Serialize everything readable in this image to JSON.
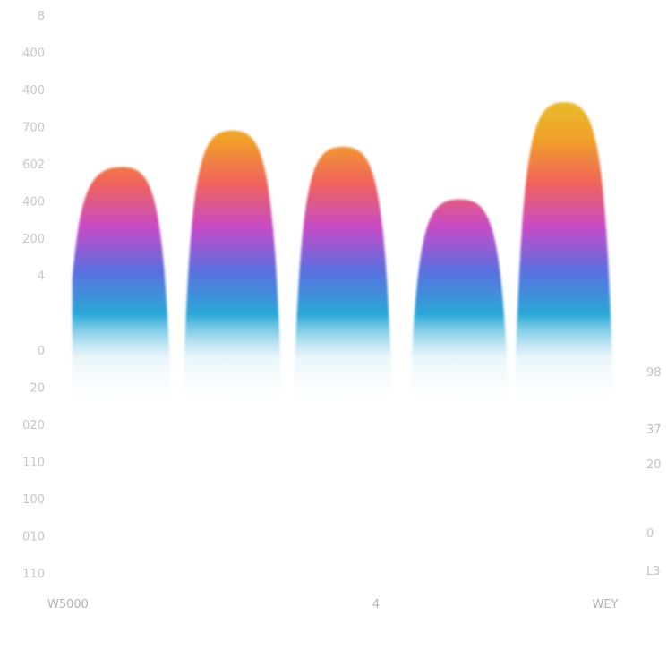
{
  "chart_data": {
    "type": "area",
    "title": "",
    "xlabel": "",
    "ylabel": "",
    "ylim": [
      0,
      10
    ],
    "y_ticks_left": [
      "8",
      "400",
      "400",
      "700",
      "602",
      "400",
      "200",
      "4",
      "",
      "0",
      "20",
      "020",
      "110",
      "100",
      "010",
      "110"
    ],
    "y_ticks_right": [
      "98",
      "37",
      "20",
      "0",
      "L3"
    ],
    "x_ticks": [
      "W5000",
      "4",
      "WEY"
    ],
    "series": [
      {
        "peaks": [
          {
            "center": 0.12,
            "value": 7.6
          },
          {
            "center": 0.31,
            "value": 8.5
          },
          {
            "center": 0.5,
            "value": 8.1
          },
          {
            "center": 0.7,
            "value": 6.8
          },
          {
            "center": 0.88,
            "value": 9.2
          }
        ],
        "min_value": 1.5
      }
    ],
    "gradient_colors": [
      "#29a8d6",
      "#5a6fe0",
      "#c74bc6",
      "#f0635c",
      "#f0a02a",
      "#e8bb2a"
    ],
    "grid": false,
    "legend": "none"
  }
}
